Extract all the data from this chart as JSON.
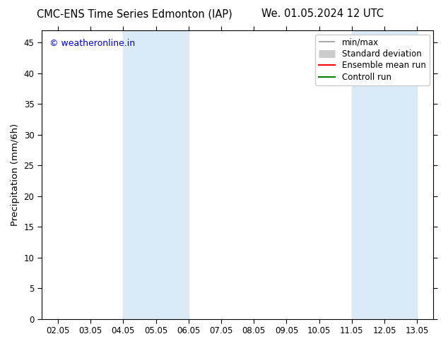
{
  "title_left": "CMC-ENS Time Series Edmonton (IAP)",
  "title_right": "We. 01.05.2024 12 UTC",
  "ylabel": "Precipitation (mm/6h)",
  "ylim": [
    0,
    47
  ],
  "yticks": [
    0,
    5,
    10,
    15,
    20,
    25,
    30,
    35,
    40,
    45
  ],
  "xtick_labels": [
    "02.05",
    "03.05",
    "04.05",
    "05.05",
    "06.05",
    "07.05",
    "08.05",
    "09.05",
    "10.05",
    "11.05",
    "12.05",
    "13.05"
  ],
  "xtick_positions": [
    0,
    1,
    2,
    3,
    4,
    5,
    6,
    7,
    8,
    9,
    10,
    11
  ],
  "xlim": [
    -0.5,
    11.5
  ],
  "shaded_bands": [
    {
      "x_start": 2.0,
      "x_end": 4.0
    },
    {
      "x_start": 9.0,
      "x_end": 11.0
    }
  ],
  "shaded_color": "#daeaf7",
  "watermark_text": "© weatheronline.in",
  "watermark_color": "#0000cc",
  "legend_labels": [
    "min/max",
    "Standard deviation",
    "Ensemble mean run",
    "Controll run"
  ],
  "legend_colors": [
    "#999999",
    "#cccccc",
    "#ff0000",
    "#008000"
  ],
  "bg_color": "#ffffff",
  "title_fontsize": 10.5,
  "tick_fontsize": 8.5,
  "ylabel_fontsize": 9.5,
  "legend_fontsize": 8.5
}
